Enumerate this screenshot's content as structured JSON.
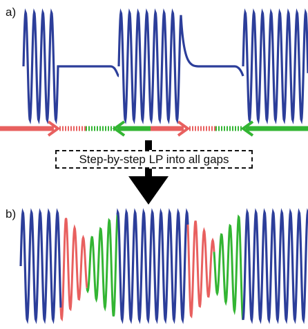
{
  "panels": {
    "a_label": "a)",
    "b_label": "b)"
  },
  "caption": "Step-by-step LP into all gaps",
  "colors": {
    "signal": "#2c3e9a",
    "forward_prediction": "#e8605f",
    "backward_prediction": "#33b533",
    "arrow": "#000000"
  }
}
